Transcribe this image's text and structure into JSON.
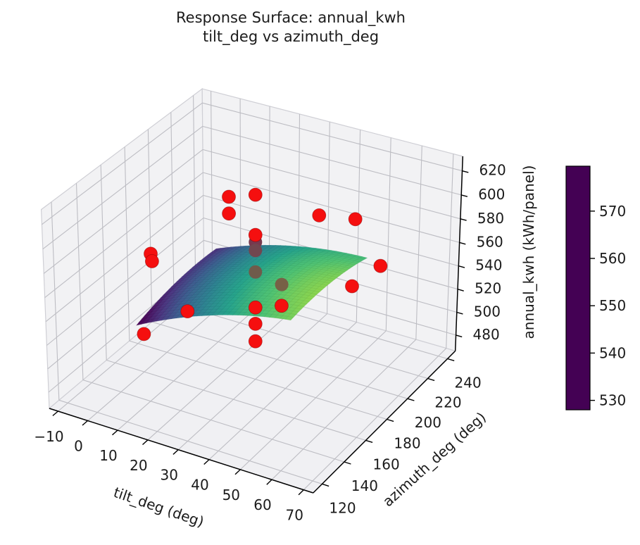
{
  "title": {
    "line1": "Response Surface: annual_kwh",
    "line2": "tilt_deg vs azimuth_deg"
  },
  "chart_data": {
    "type": "3d-surface-scatter",
    "axes": {
      "x": {
        "label": "tilt_deg (deg)",
        "ticks": [
          -10,
          0,
          10,
          20,
          30,
          40,
          50,
          60,
          70
        ],
        "range": [
          -13,
          73
        ]
      },
      "y": {
        "label": "azimuth_deg (deg)",
        "ticks": [
          120,
          140,
          160,
          180,
          200,
          220,
          240
        ],
        "range": [
          112,
          248
        ]
      },
      "z": {
        "label": "annual_kwh (kWh/panel)",
        "ticks": [
          480,
          500,
          520,
          540,
          560,
          580,
          600,
          620
        ],
        "range": [
          466,
          632
        ]
      }
    },
    "colorbar": {
      "ticks": [
        530,
        540,
        550,
        560,
        570
      ],
      "vmin": 528,
      "vmax": 579.5
    },
    "surface": {
      "tilt_range": [
        5,
        55
      ],
      "azimuth_range": [
        142,
        212
      ],
      "grid_n": 30,
      "model": "kwh = 558 + 0.7*(t-30) - 0.010*(t-30)^2 - 0.0034*(a-180)^2 - 0.004*(t-30)*(a-180)",
      "coeffs": {
        "c0": 558,
        "ct": 0.7,
        "ctt": -0.01,
        "caa": -0.0034,
        "cta": -0.004
      }
    },
    "points": [
      {
        "tilt": 15,
        "azimuth": 197,
        "kwh": 597,
        "behind_surface": false
      },
      {
        "tilt": 30,
        "azimuth": 180,
        "kwh": 622,
        "behind_surface": false
      },
      {
        "tilt": 15,
        "azimuth": 197,
        "kwh": 583,
        "behind_surface": false
      },
      {
        "tilt": 30,
        "azimuth": 180,
        "kwh": 589,
        "behind_surface": false
      },
      {
        "tilt": 30,
        "azimuth": 180,
        "kwh": 583,
        "behind_surface": true
      },
      {
        "tilt": 30,
        "azimuth": 180,
        "kwh": 576,
        "behind_surface": true
      },
      {
        "tilt": 5,
        "azimuth": 155,
        "kwh": 575,
        "behind_surface": false
      },
      {
        "tilt": 5,
        "azimuth": 156,
        "kwh": 568,
        "behind_surface": false
      },
      {
        "tilt": 30,
        "azimuth": 180,
        "kwh": 558,
        "behind_surface": true
      },
      {
        "tilt": 35,
        "azimuth": 190,
        "kwh": 543,
        "behind_surface": true
      },
      {
        "tilt": 15,
        "azimuth": 160,
        "kwh": 530,
        "behind_surface": false
      },
      {
        "tilt": 30,
        "azimuth": 180,
        "kwh": 528,
        "behind_surface": false
      },
      {
        "tilt": 35,
        "azimuth": 190,
        "kwh": 525,
        "behind_surface": false
      },
      {
        "tilt": 30,
        "azimuth": 180,
        "kwh": 514,
        "behind_surface": false
      },
      {
        "tilt": 5,
        "azimuth": 148,
        "kwh": 513,
        "behind_surface": false
      },
      {
        "tilt": 30,
        "azimuth": 180,
        "kwh": 499,
        "behind_surface": false
      },
      {
        "tilt": 40,
        "azimuth": 210,
        "kwh": 589,
        "behind_surface": false
      },
      {
        "tilt": 50,
        "azimuth": 215,
        "kwh": 589,
        "behind_surface": false
      },
      {
        "tilt": 60,
        "azimuth": 210,
        "kwh": 561,
        "behind_surface": false
      },
      {
        "tilt": 50,
        "azimuth": 213,
        "kwh": 534,
        "behind_surface": false
      }
    ],
    "colors": {
      "point": "#f50f0f",
      "point_edge": "#8f0000",
      "grid": "#bdbdc3",
      "pane_wall": "#f2f2f4",
      "pane_floor": "#f0f0f3",
      "pane_edge": "#cfcfd5",
      "axis": "#000000",
      "text": "#1a1a1a",
      "viridis": [
        "#440154",
        "#46327e",
        "#365c8d",
        "#277f8e",
        "#1fa187",
        "#4ac16d",
        "#a0da39",
        "#fde725"
      ]
    }
  }
}
